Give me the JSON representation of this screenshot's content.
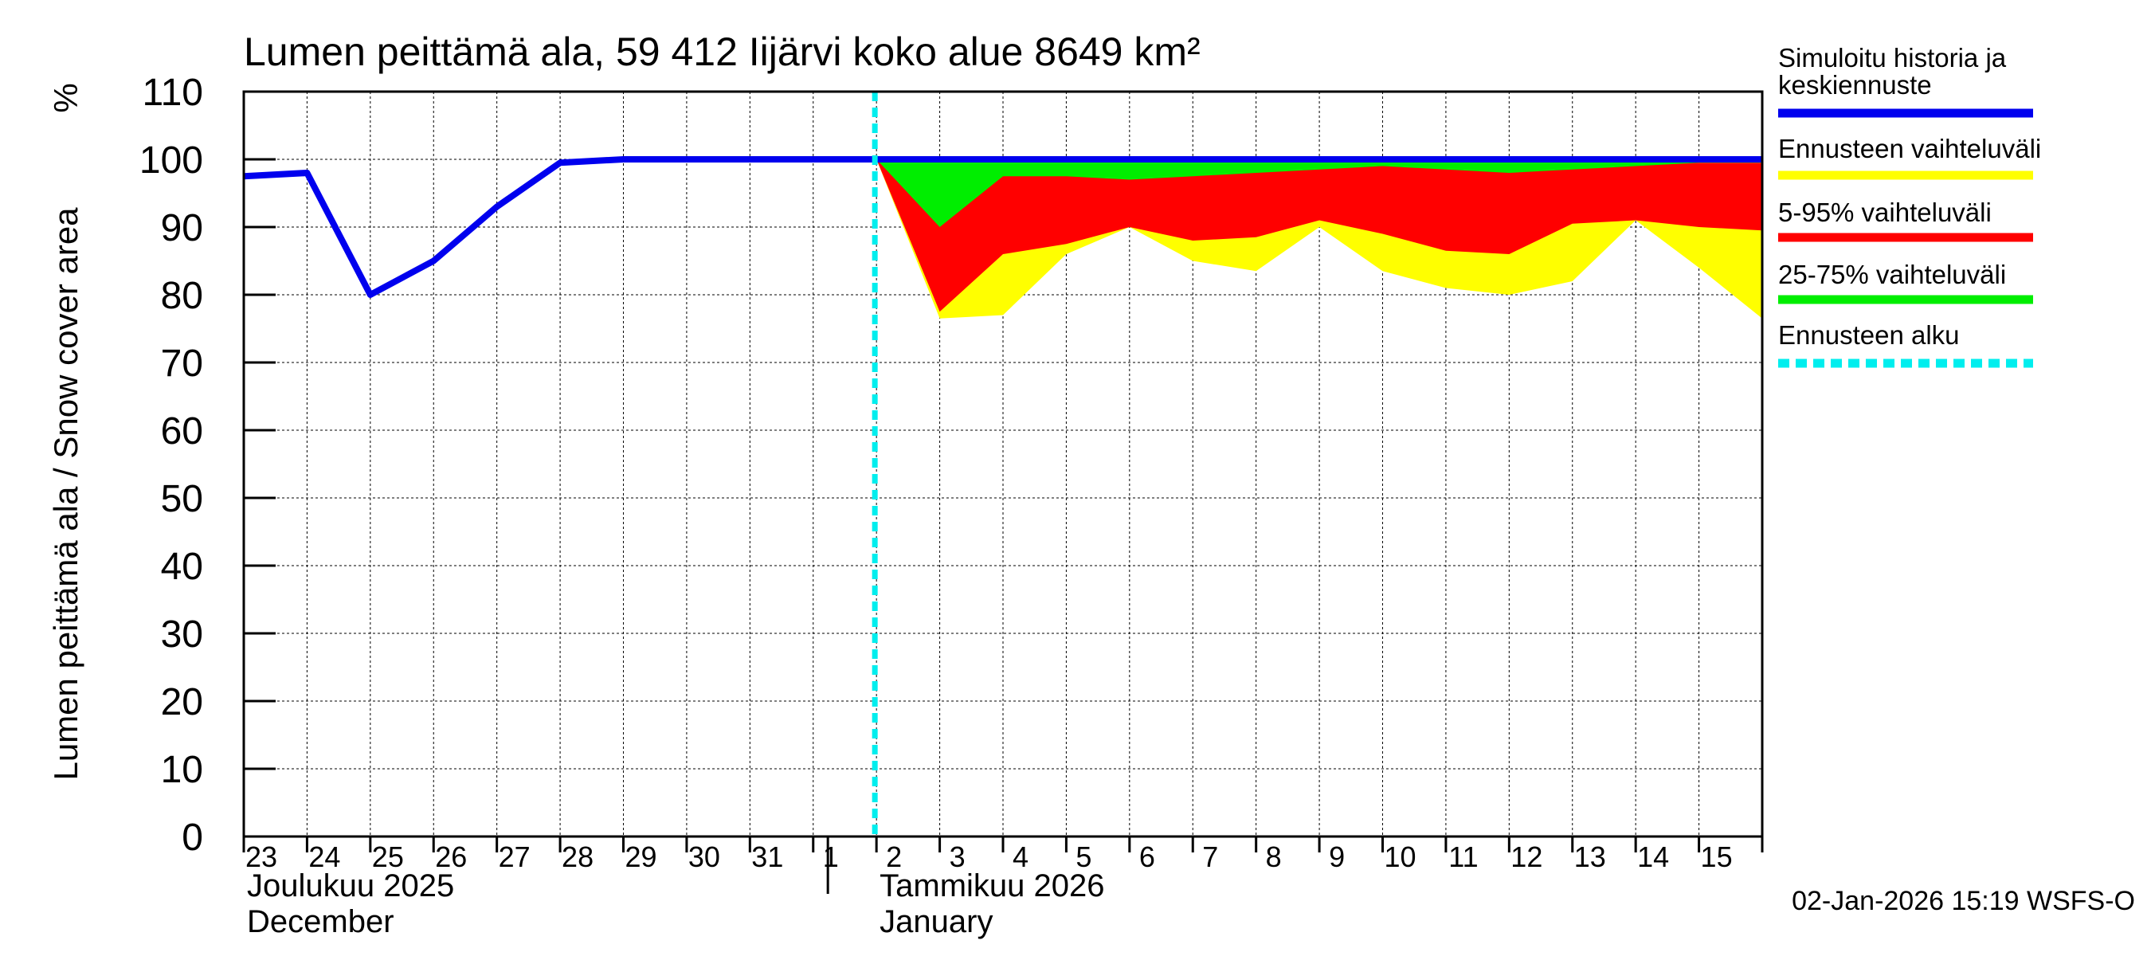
{
  "chart_data": {
    "type": "area",
    "title": "Lumen peittämä ala, 59 412 Iijärvi koko alue 8649 km²",
    "ylabel": "Lumen peittämä ala / Snow cover area",
    "yunit": "%",
    "ylim": [
      0,
      110
    ],
    "yticks": [
      0,
      10,
      20,
      30,
      40,
      50,
      60,
      70,
      80,
      90,
      100,
      110
    ],
    "x_day_labels": [
      "23",
      "24",
      "25",
      "26",
      "27",
      "28",
      "29",
      "30",
      "31",
      "1",
      "2",
      "3",
      "4",
      "5",
      "6",
      "7",
      "8",
      "9",
      "10",
      "11",
      "12",
      "13",
      "14",
      "15"
    ],
    "month_labels": [
      {
        "fi": "Joulukuu  2025",
        "en": "December",
        "start_day_index": 0
      },
      {
        "fi": "Tammikuu  2026",
        "en": "January",
        "start_day_index": 10
      }
    ],
    "forecast_start_day_index": 10,
    "history": {
      "name": "Simuloitu historia ja keskiennuste",
      "x": [
        0,
        1,
        2,
        3,
        4,
        5,
        6,
        7,
        8,
        9,
        10,
        11,
        12,
        13,
        14,
        15,
        16,
        17,
        18,
        19,
        20,
        21,
        22,
        23,
        24
      ],
      "values": [
        97.5,
        98,
        80,
        85,
        93,
        99.5,
        100,
        100,
        100,
        100,
        100,
        100,
        100,
        100,
        100,
        100,
        100,
        100,
        100,
        100,
        100,
        100,
        100,
        100,
        100
      ]
    },
    "bands": [
      {
        "name": "Ennusteen vaihteluväli",
        "color": "#ffff00",
        "x": [
          10,
          11,
          12,
          13,
          14,
          15,
          16,
          17,
          18,
          19,
          20,
          21,
          22,
          23,
          24
        ],
        "low": [
          100,
          76.5,
          77,
          86,
          90,
          85,
          83.5,
          90,
          83.5,
          81,
          80,
          82,
          91,
          84,
          76.5
        ],
        "high": [
          100,
          100,
          100,
          100,
          100,
          100,
          100,
          100,
          100,
          100,
          100,
          100,
          100,
          100,
          100
        ]
      },
      {
        "name": "5-95% vaihteluväli",
        "color": "#ff0000",
        "x": [
          10,
          11,
          12,
          13,
          14,
          15,
          16,
          17,
          18,
          19,
          20,
          21,
          22,
          23,
          24
        ],
        "low": [
          100,
          77.5,
          86,
          87.5,
          90,
          88,
          88.5,
          91,
          89,
          86.5,
          86,
          90.5,
          91,
          90,
          89.5
        ],
        "high": [
          100,
          99.5,
          99.5,
          99.5,
          99.5,
          99.5,
          99.5,
          99.5,
          99.5,
          99.5,
          99.5,
          99.5,
          99.5,
          99.5,
          99.5
        ]
      },
      {
        "name": "25-75% vaihteluväli",
        "color": "#00ee00",
        "x": [
          10,
          11,
          12,
          13,
          14,
          15,
          16,
          17,
          18,
          19,
          20,
          21,
          22,
          23,
          24
        ],
        "low": [
          100,
          90,
          97.5,
          97.5,
          97,
          97.5,
          98,
          98.5,
          99,
          98.5,
          98,
          98.5,
          99,
          99.5,
          99.5
        ],
        "high": [
          100,
          100,
          100,
          100,
          100,
          100,
          100,
          100,
          100,
          100,
          100,
          100,
          100,
          100,
          100
        ]
      }
    ],
    "legend": [
      {
        "label": "Simuloitu historia ja keskiennuste",
        "color": "#0000ee",
        "style": "solid"
      },
      {
        "label": "Ennusteen vaihteluväli",
        "color": "#ffff00",
        "style": "solid"
      },
      {
        "label": "5-95% vaihteluväli",
        "color": "#ff0000",
        "style": "solid"
      },
      {
        "label": "25-75% vaihteluväli",
        "color": "#00ee00",
        "style": "solid"
      },
      {
        "label": "Ennusteen alku",
        "color": "#00eeee",
        "style": "dashed"
      }
    ],
    "footer": "02-Jan-2026 15:19 WSFS-O"
  }
}
